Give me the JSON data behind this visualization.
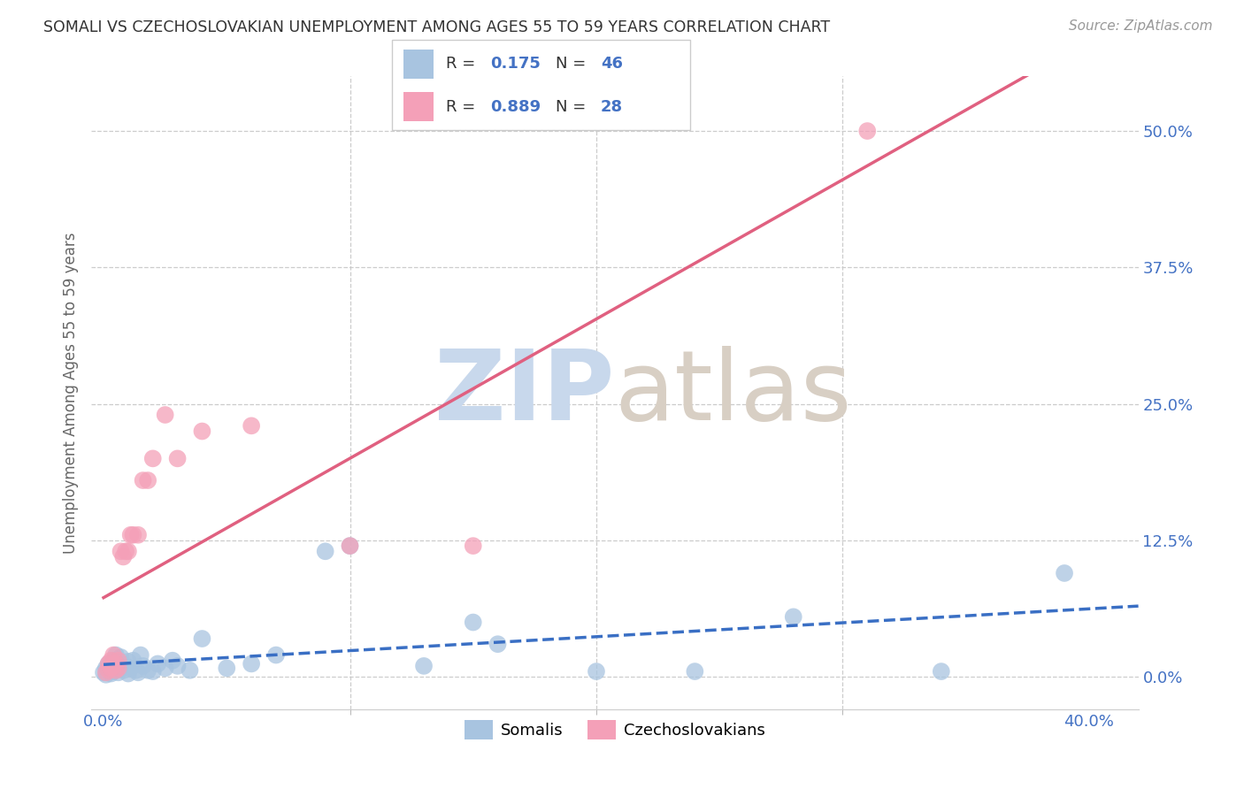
{
  "title": "SOMALI VS CZECHOSLOVAKIAN UNEMPLOYMENT AMONG AGES 55 TO 59 YEARS CORRELATION CHART",
  "source": "Source: ZipAtlas.com",
  "ylabel": "Unemployment Among Ages 55 to 59 years",
  "xlim": [
    -0.005,
    0.42
  ],
  "ylim": [
    -0.03,
    0.55
  ],
  "somali_R": 0.175,
  "somali_N": 46,
  "czech_R": 0.889,
  "czech_N": 28,
  "somali_color": "#a8c4e0",
  "czech_color": "#f4a0b8",
  "somali_line_color": "#3a6fc4",
  "czech_line_color": "#e06080",
  "watermark_zip_color": "#c8d8ec",
  "watermark_atlas_color": "#d8cfc4",
  "title_color": "#333333",
  "axis_label_color": "#4472c4",
  "somali_x": [
    0.0,
    0.001,
    0.001,
    0.002,
    0.002,
    0.003,
    0.003,
    0.004,
    0.004,
    0.005,
    0.005,
    0.006,
    0.006,
    0.007,
    0.007,
    0.008,
    0.009,
    0.01,
    0.01,
    0.011,
    0.012,
    0.013,
    0.014,
    0.015,
    0.016,
    0.018,
    0.02,
    0.022,
    0.025,
    0.028,
    0.03,
    0.035,
    0.04,
    0.05,
    0.06,
    0.07,
    0.09,
    0.1,
    0.13,
    0.15,
    0.16,
    0.2,
    0.24,
    0.28,
    0.34,
    0.39
  ],
  "somali_y": [
    0.004,
    0.008,
    0.002,
    0.006,
    0.012,
    0.003,
    0.01,
    0.005,
    0.015,
    0.007,
    0.02,
    0.004,
    0.012,
    0.008,
    0.018,
    0.006,
    0.01,
    0.014,
    0.003,
    0.008,
    0.015,
    0.006,
    0.004,
    0.02,
    0.01,
    0.006,
    0.005,
    0.012,
    0.008,
    0.015,
    0.01,
    0.006,
    0.035,
    0.008,
    0.012,
    0.02,
    0.115,
    0.12,
    0.01,
    0.05,
    0.03,
    0.005,
    0.005,
    0.055,
    0.005,
    0.095
  ],
  "czech_x": [
    0.001,
    0.002,
    0.002,
    0.003,
    0.003,
    0.004,
    0.004,
    0.005,
    0.005,
    0.006,
    0.006,
    0.007,
    0.008,
    0.009,
    0.01,
    0.011,
    0.012,
    0.014,
    0.016,
    0.018,
    0.02,
    0.025,
    0.03,
    0.04,
    0.06,
    0.1,
    0.15,
    0.31
  ],
  "czech_y": [
    0.004,
    0.006,
    0.012,
    0.008,
    0.015,
    0.01,
    0.02,
    0.006,
    0.012,
    0.008,
    0.015,
    0.115,
    0.11,
    0.115,
    0.115,
    0.13,
    0.13,
    0.13,
    0.18,
    0.18,
    0.2,
    0.24,
    0.2,
    0.225,
    0.23,
    0.12,
    0.12,
    0.5
  ],
  "xtick_vals": [
    0.0,
    0.4
  ],
  "xtick_minor": [
    0.1,
    0.2,
    0.3
  ],
  "ytick_vals": [
    0.0,
    0.125,
    0.25,
    0.375,
    0.5
  ],
  "legend_bottom_items": [
    "Somalis",
    "Czechoslovakians"
  ]
}
